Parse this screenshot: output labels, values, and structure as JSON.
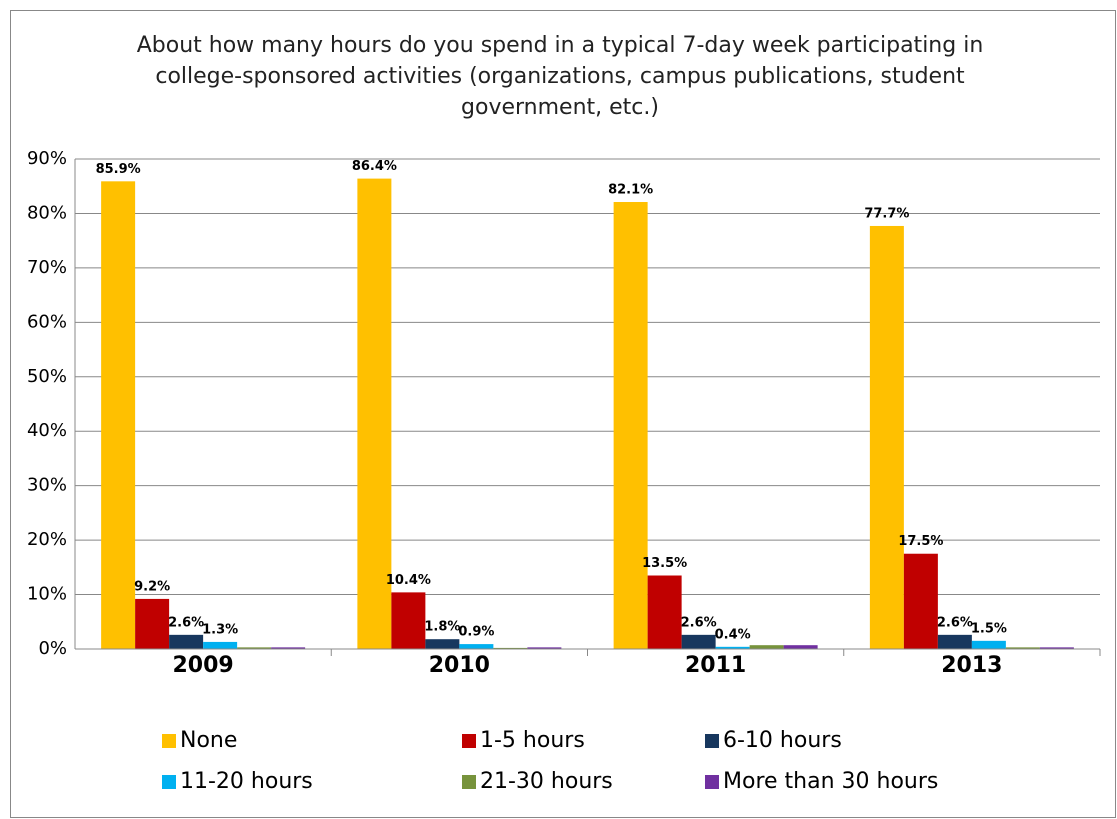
{
  "chart_data": {
    "type": "bar",
    "title": "About how many hours do you spend in a typical 7-day week participating in college-sponsored activities (organizations, campus publications, student government, etc.)",
    "categories": [
      "2009",
      "2010",
      "2011",
      "2013"
    ],
    "series": [
      {
        "name": "None",
        "color": "#FFC000",
        "values": [
          85.9,
          86.4,
          82.1,
          77.7
        ],
        "value_labels": [
          "85.9%",
          "86.4%",
          "82.1%",
          "77.7%"
        ]
      },
      {
        "name": "1-5 hours",
        "color": "#C00000",
        "values": [
          9.2,
          10.4,
          13.5,
          17.5
        ],
        "value_labels": [
          "9.2%",
          "10.4%",
          "13.5%",
          "17.5%"
        ]
      },
      {
        "name": "6-10 hours",
        "color": "#17375E",
        "values": [
          2.6,
          1.8,
          2.6,
          2.6
        ],
        "value_labels": [
          "2.6%",
          "1.8%",
          "2.6%",
          "2.6%"
        ]
      },
      {
        "name": "11-20 hours",
        "color": "#00B0F0",
        "values": [
          1.3,
          0.9,
          0.4,
          1.5
        ],
        "value_labels": [
          "1.3%",
          "0.9%",
          "0.4%",
          "1.5%"
        ]
      },
      {
        "name": "21-30 hours",
        "color": "#77933C",
        "values": [
          0.3,
          0.2,
          0.7,
          0.3
        ]
      },
      {
        "name": "More than 30 hours",
        "color": "#7030A0",
        "values": [
          0.3,
          0.3,
          0.7,
          0.3
        ]
      }
    ],
    "ylim": [
      0,
      90
    ],
    "yticks": [
      {
        "value": 0,
        "label": "0%"
      },
      {
        "value": 10,
        "label": "10%"
      },
      {
        "value": 20,
        "label": "20%"
      },
      {
        "value": 30,
        "label": "30%"
      },
      {
        "value": 40,
        "label": "40%"
      },
      {
        "value": 50,
        "label": "50%"
      },
      {
        "value": 60,
        "label": "60%"
      },
      {
        "value": 70,
        "label": "70%"
      },
      {
        "value": 80,
        "label": "80%"
      },
      {
        "value": 90,
        "label": "90%"
      }
    ],
    "grid": true,
    "legend": "bottom"
  }
}
